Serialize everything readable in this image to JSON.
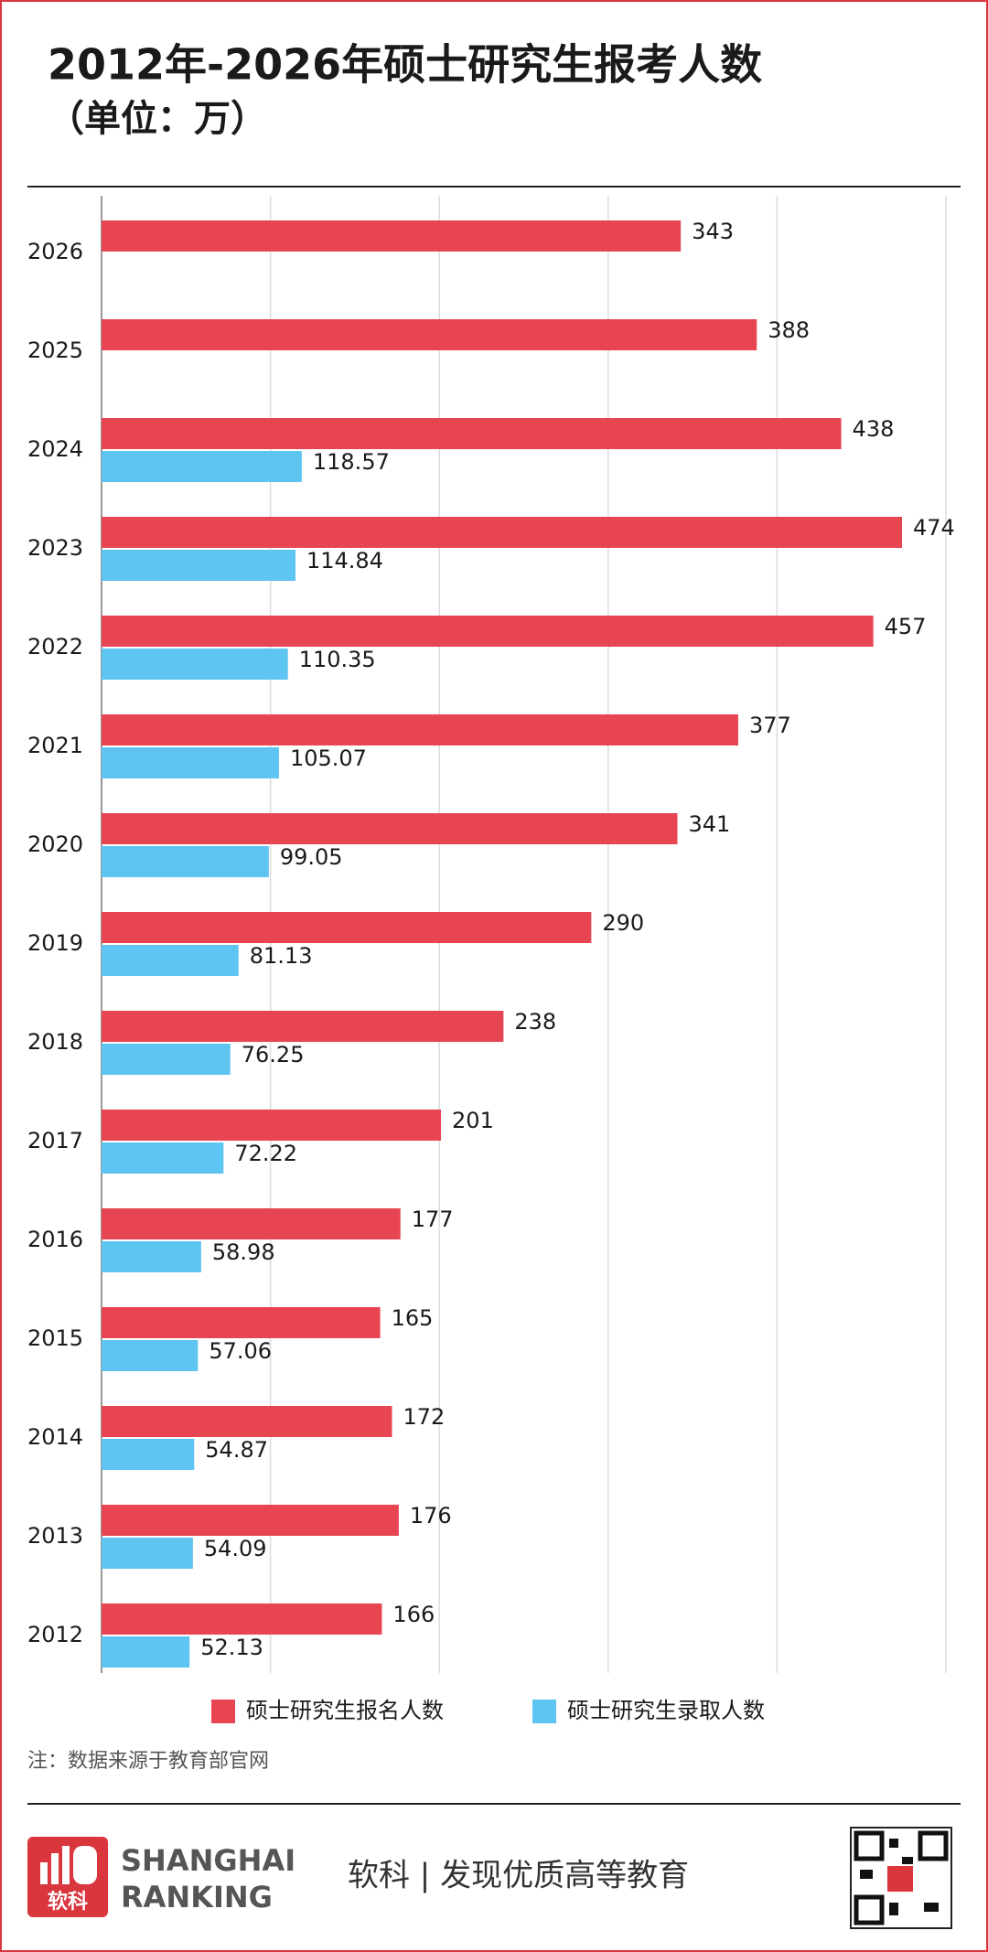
{
  "chart_data": {
    "type": "hbar",
    "title": "2012年-2026年硕士研究生报考人数",
    "subtitle": "（单位：万）",
    "categories": [
      "2026",
      "2025",
      "2024",
      "2023",
      "2022",
      "2021",
      "2020",
      "2019",
      "2018",
      "2017",
      "2016",
      "2015",
      "2014",
      "2013",
      "2012"
    ],
    "series": [
      {
        "name": "硕士研究生报名人数",
        "color": "#e84552",
        "values": [
          343,
          388,
          438,
          474,
          457,
          377,
          341,
          290,
          238,
          201,
          177,
          165,
          172,
          176,
          166
        ]
      },
      {
        "name": "硕士研究生录取人数",
        "color": "#5ec4f2",
        "values": [
          null,
          null,
          118.57,
          114.84,
          110.35,
          105.07,
          99.05,
          81.13,
          76.25,
          72.22,
          58.98,
          57.06,
          54.87,
          54.09,
          52.13
        ]
      }
    ],
    "xlim": [
      0,
      500
    ],
    "xticks": [
      0,
      100,
      200,
      300,
      400,
      500
    ],
    "grid": true,
    "note": "注：数据来源于教育部官网"
  },
  "footer": {
    "logo_text": "软科",
    "brand_line1": "SHANGHAI",
    "brand_line2": "RANKING",
    "slogan": "软科 | 发现优质高等教育"
  }
}
